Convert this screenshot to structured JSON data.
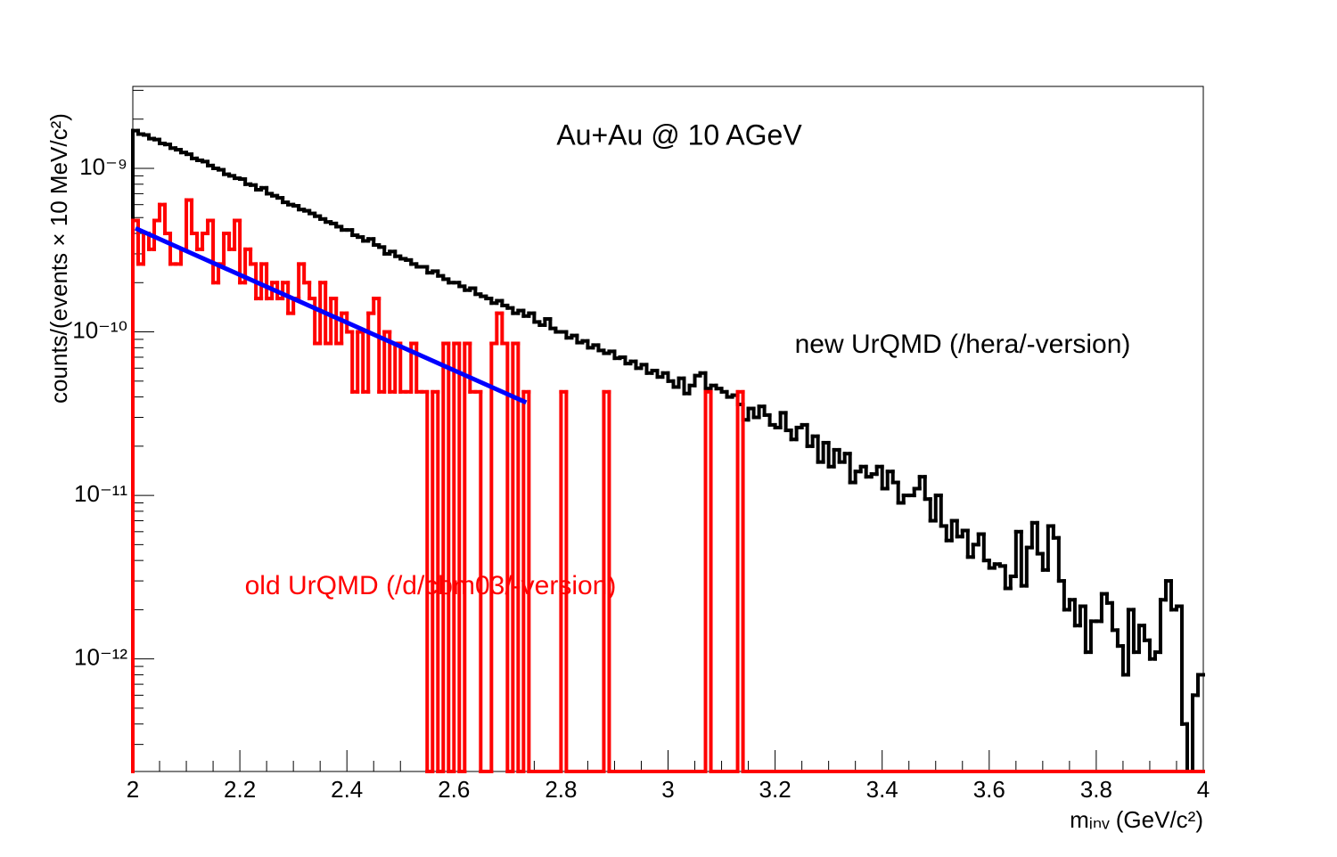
{
  "chart_data": {
    "type": "histogram",
    "title": "Au+Au @ 10 AGeV",
    "xlabel": "mᵢₙᵥ (GeV/c²)",
    "ylabel": "counts/(events × 10 MeV/c²)",
    "log_y": true,
    "xlim": [
      2,
      4
    ],
    "ylim": [
      2.05e-13,
      3.17e-09
    ],
    "xticks": [
      2,
      2.2,
      2.4,
      2.6,
      2.8,
      3,
      3.2,
      3.4,
      3.6,
      3.8,
      4
    ],
    "yticks": [
      {
        "value": 1e-12,
        "label": "10⁻¹²"
      },
      {
        "value": 1e-11,
        "label": "10⁻¹¹"
      },
      {
        "value": 1e-10,
        "label": "10⁻¹⁰"
      },
      {
        "value": 1e-09,
        "label": "10⁻⁹"
      }
    ],
    "bins": [
      2,
      2.01,
      2.02,
      2.03,
      2.04,
      2.05,
      2.06,
      2.07,
      2.08,
      2.09,
      2.1,
      2.11,
      2.12,
      2.13,
      2.14,
      2.15,
      2.16,
      2.17,
      2.18,
      2.19,
      2.2,
      2.21,
      2.22,
      2.23,
      2.24,
      2.25,
      2.26,
      2.27,
      2.28,
      2.29,
      2.3,
      2.31,
      2.32,
      2.33,
      2.34,
      2.35,
      2.36,
      2.37,
      2.38,
      2.39,
      2.4,
      2.41,
      2.42,
      2.43,
      2.44,
      2.45,
      2.46,
      2.47,
      2.48,
      2.49,
      2.5,
      2.51,
      2.52,
      2.53,
      2.54,
      2.55,
      2.56,
      2.57,
      2.58,
      2.59,
      2.6,
      2.61,
      2.62,
      2.63,
      2.64,
      2.65,
      2.66,
      2.67,
      2.68,
      2.69,
      2.7,
      2.71,
      2.72,
      2.73,
      2.74,
      2.75,
      2.76,
      2.77,
      2.78,
      2.79,
      2.8,
      2.81,
      2.82,
      2.83,
      2.84,
      2.85,
      2.86,
      2.87,
      2.88,
      2.89,
      2.9,
      2.91,
      2.92,
      2.93,
      2.94,
      2.95,
      2.96,
      2.97,
      2.98,
      2.99,
      3,
      3.01,
      3.02,
      3.03,
      3.04,
      3.05,
      3.06,
      3.07,
      3.08,
      3.09,
      3.1,
      3.11,
      3.12,
      3.13,
      3.14,
      3.15,
      3.16,
      3.17,
      3.18,
      3.19,
      3.2,
      3.21,
      3.22,
      3.23,
      3.24,
      3.25,
      3.26,
      3.27,
      3.28,
      3.29,
      3.3,
      3.31,
      3.32,
      3.33,
      3.34,
      3.35,
      3.36,
      3.37,
      3.38,
      3.39,
      3.4,
      3.41,
      3.42,
      3.43,
      3.44,
      3.45,
      3.46,
      3.47,
      3.48,
      3.49,
      3.5,
      3.51,
      3.52,
      3.53,
      3.54,
      3.55,
      3.56,
      3.57,
      3.58,
      3.59,
      3.6,
      3.61,
      3.62,
      3.63,
      3.64,
      3.65,
      3.66,
      3.67,
      3.68,
      3.69,
      3.7,
      3.71,
      3.72,
      3.73,
      3.74,
      3.75,
      3.76,
      3.77,
      3.78,
      3.79,
      3.8,
      3.81,
      3.82,
      3.83,
      3.84,
      3.85,
      3.86,
      3.87,
      3.88,
      3.89,
      3.9,
      3.91,
      3.92,
      3.93,
      3.94,
      3.95,
      3.96,
      3.97,
      3.98,
      3.99,
      4
    ],
    "series": [
      {
        "name": "new UrQMD (/hera/-version)",
        "color": "#000000",
        "values": [
          1.7e-09,
          1.62e-09,
          1.6e-09,
          1.52e-09,
          1.5e-09,
          1.42e-09,
          1.4e-09,
          1.33e-09,
          1.3e-09,
          1.25e-09,
          1.22e-09,
          1.15e-09,
          1.12e-09,
          1.1e-09,
          1.04e-09,
          1e-09,
          9.8e-10,
          9.2e-10,
          9e-10,
          8.7e-10,
          8.6e-10,
          8e-10,
          7.9e-10,
          7.4e-10,
          7.6e-10,
          7e-10,
          6.8e-10,
          6.6e-10,
          6.2e-10,
          6e-10,
          5.9e-10,
          5.6e-10,
          5.5e-10,
          5.3e-10,
          5.1e-10,
          4.9e-10,
          4.7e-10,
          4.6e-10,
          4.4e-10,
          4.2e-10,
          4.2e-10,
          3.9e-10,
          3.8e-10,
          3.6e-10,
          3.7e-10,
          3.4e-10,
          3.3e-10,
          3e-10,
          3.1e-10,
          2.9e-10,
          2.8e-10,
          2.75e-10,
          2.6e-10,
          2.5e-10,
          2.5e-10,
          2.3e-10,
          2.35e-10,
          2.2e-10,
          2.1e-10,
          2e-10,
          2e-10,
          1.9e-10,
          1.8e-10,
          1.85e-10,
          1.7e-10,
          1.65e-10,
          1.6e-10,
          1.5e-10,
          1.55e-10,
          1.45e-10,
          1.4e-10,
          1.3e-10,
          1.35e-10,
          1.25e-10,
          1.3e-10,
          1.15e-10,
          1.1e-10,
          1.2e-10,
          1.05e-10,
          1e-10,
          1e-10,
          9.2e-11,
          9.5e-11,
          8.6e-11,
          8.8e-11,
          8e-11,
          8.3e-11,
          7.7e-11,
          7.4e-11,
          7.6e-11,
          6.9e-11,
          7e-11,
          6.4e-11,
          6.6e-11,
          6e-11,
          6.3e-11,
          5.6e-11,
          5.8e-11,
          5.3e-11,
          5.6e-11,
          5e-11,
          4.6e-11,
          5.2e-11,
          4.2e-11,
          4.7e-11,
          5.4e-11,
          5.6e-11,
          4.5e-11,
          4.7e-11,
          4.5e-11,
          4.3e-11,
          4e-11,
          4.1e-11,
          3.6e-11,
          2.9e-11,
          3.4e-11,
          3e-11,
          3.5e-11,
          3.1e-11,
          2.7e-11,
          2.6e-11,
          3.2e-11,
          2.5e-11,
          2.2e-11,
          2.6e-11,
          2.7e-11,
          2e-11,
          2.3e-11,
          1.6e-11,
          2.1e-11,
          1.5e-11,
          1.9e-11,
          1.6e-11,
          1.8e-11,
          1.2e-11,
          1.4e-11,
          1.5e-11,
          1.3e-11,
          1.35e-11,
          1.5e-11,
          1.1e-11,
          1.4e-11,
          1.2e-11,
          9e-12,
          1e-11,
          1e-11,
          1.1e-11,
          1.3e-11,
          9.5e-12,
          7e-12,
          1e-11,
          6.5e-12,
          5.3e-12,
          7e-12,
          5.6e-12,
          6.1e-12,
          4.2e-12,
          5e-12,
          5.8e-12,
          4e-12,
          3.6e-12,
          3.8e-12,
          3.7e-12,
          2.7e-12,
          3.2e-12,
          6e-12,
          2.8e-12,
          4.8e-12,
          6.8e-12,
          4.4e-12,
          3.5e-12,
          6.5e-12,
          5.5e-12,
          3e-12,
          2e-12,
          2.3e-12,
          1.6e-12,
          2.1e-12,
          1.1e-12,
          1.7e-12,
          1.7e-12,
          2.5e-12,
          2.2e-12,
          1.5e-12,
          1.2e-12,
          8e-13,
          2e-12,
          1.1e-12,
          1.6e-12,
          1.3e-12,
          1e-12,
          1.1e-12,
          2.3e-12,
          3e-12,
          2e-12,
          2.1e-12,
          4e-13,
          0,
          6e-13,
          8e-13
        ]
      },
      {
        "name": "old UrQMD (/d/cbm03/-version)",
        "color": "#ff0000",
        "values": [
          4.8e-10,
          2.6e-10,
          4e-10,
          3.2e-10,
          4.8e-10,
          6e-10,
          4e-10,
          2.6e-10,
          2.6e-10,
          3.2e-10,
          6.4e-10,
          4e-10,
          3.2e-10,
          4e-10,
          4.8e-10,
          2e-10,
          2.6e-10,
          4e-10,
          3.2e-10,
          4.8e-10,
          2e-10,
          3.2e-10,
          2.6e-10,
          1.6e-10,
          2.6e-10,
          1.6e-10,
          2e-10,
          1.6e-10,
          2e-10,
          1.3e-10,
          1.6e-10,
          2.6e-10,
          2e-10,
          1.6e-10,
          8.5e-11,
          2e-10,
          8.5e-11,
          1.6e-10,
          8.5e-11,
          1.3e-10,
          1e-10,
          4.3e-11,
          1e-10,
          4.3e-11,
          1.3e-10,
          1.6e-10,
          4.3e-11,
          1e-10,
          4.3e-11,
          8.5e-11,
          4.3e-11,
          4.3e-11,
          8.5e-11,
          4.3e-11,
          4.3e-11,
          0,
          4.3e-11,
          0,
          8.5e-11,
          0,
          8.5e-11,
          0,
          8.5e-11,
          4.3e-11,
          4.3e-11,
          0,
          0,
          8.5e-11,
          1.3e-10,
          8.5e-11,
          0,
          8.5e-11,
          0,
          4.3e-11,
          0,
          0,
          0,
          0,
          0,
          0,
          4.3e-11,
          0,
          0,
          0,
          0,
          0,
          0,
          0,
          4.3e-11,
          0,
          0,
          0,
          0,
          0,
          0,
          0,
          0,
          0,
          0,
          0,
          0,
          0,
          0,
          0,
          0,
          0,
          0,
          4.3e-11,
          0,
          0,
          0,
          0,
          0,
          4.3e-11,
          0,
          0,
          0,
          0,
          0,
          0,
          0,
          0,
          0,
          0,
          0,
          0,
          0,
          0,
          0,
          0,
          0,
          0,
          0,
          0,
          0,
          0,
          0,
          0,
          0,
          0,
          0,
          0,
          0,
          0,
          0,
          0,
          0,
          0,
          0,
          0,
          0,
          0,
          0,
          0,
          0,
          0,
          0,
          0,
          0,
          0,
          0,
          0,
          0,
          0,
          0,
          0,
          0,
          0,
          0,
          0,
          0,
          0,
          0,
          0,
          0,
          0,
          0,
          0,
          0,
          0,
          0,
          0,
          0,
          0,
          0,
          0,
          0,
          0,
          0,
          0,
          0,
          0,
          0,
          0,
          0,
          0,
          0,
          0,
          0,
          0
        ]
      }
    ],
    "fit": {
      "type": "line",
      "color": "#0000ff",
      "x": [
        2.005,
        2.735
      ],
      "values": [
        4.3e-10,
        3.7e-11
      ]
    }
  }
}
